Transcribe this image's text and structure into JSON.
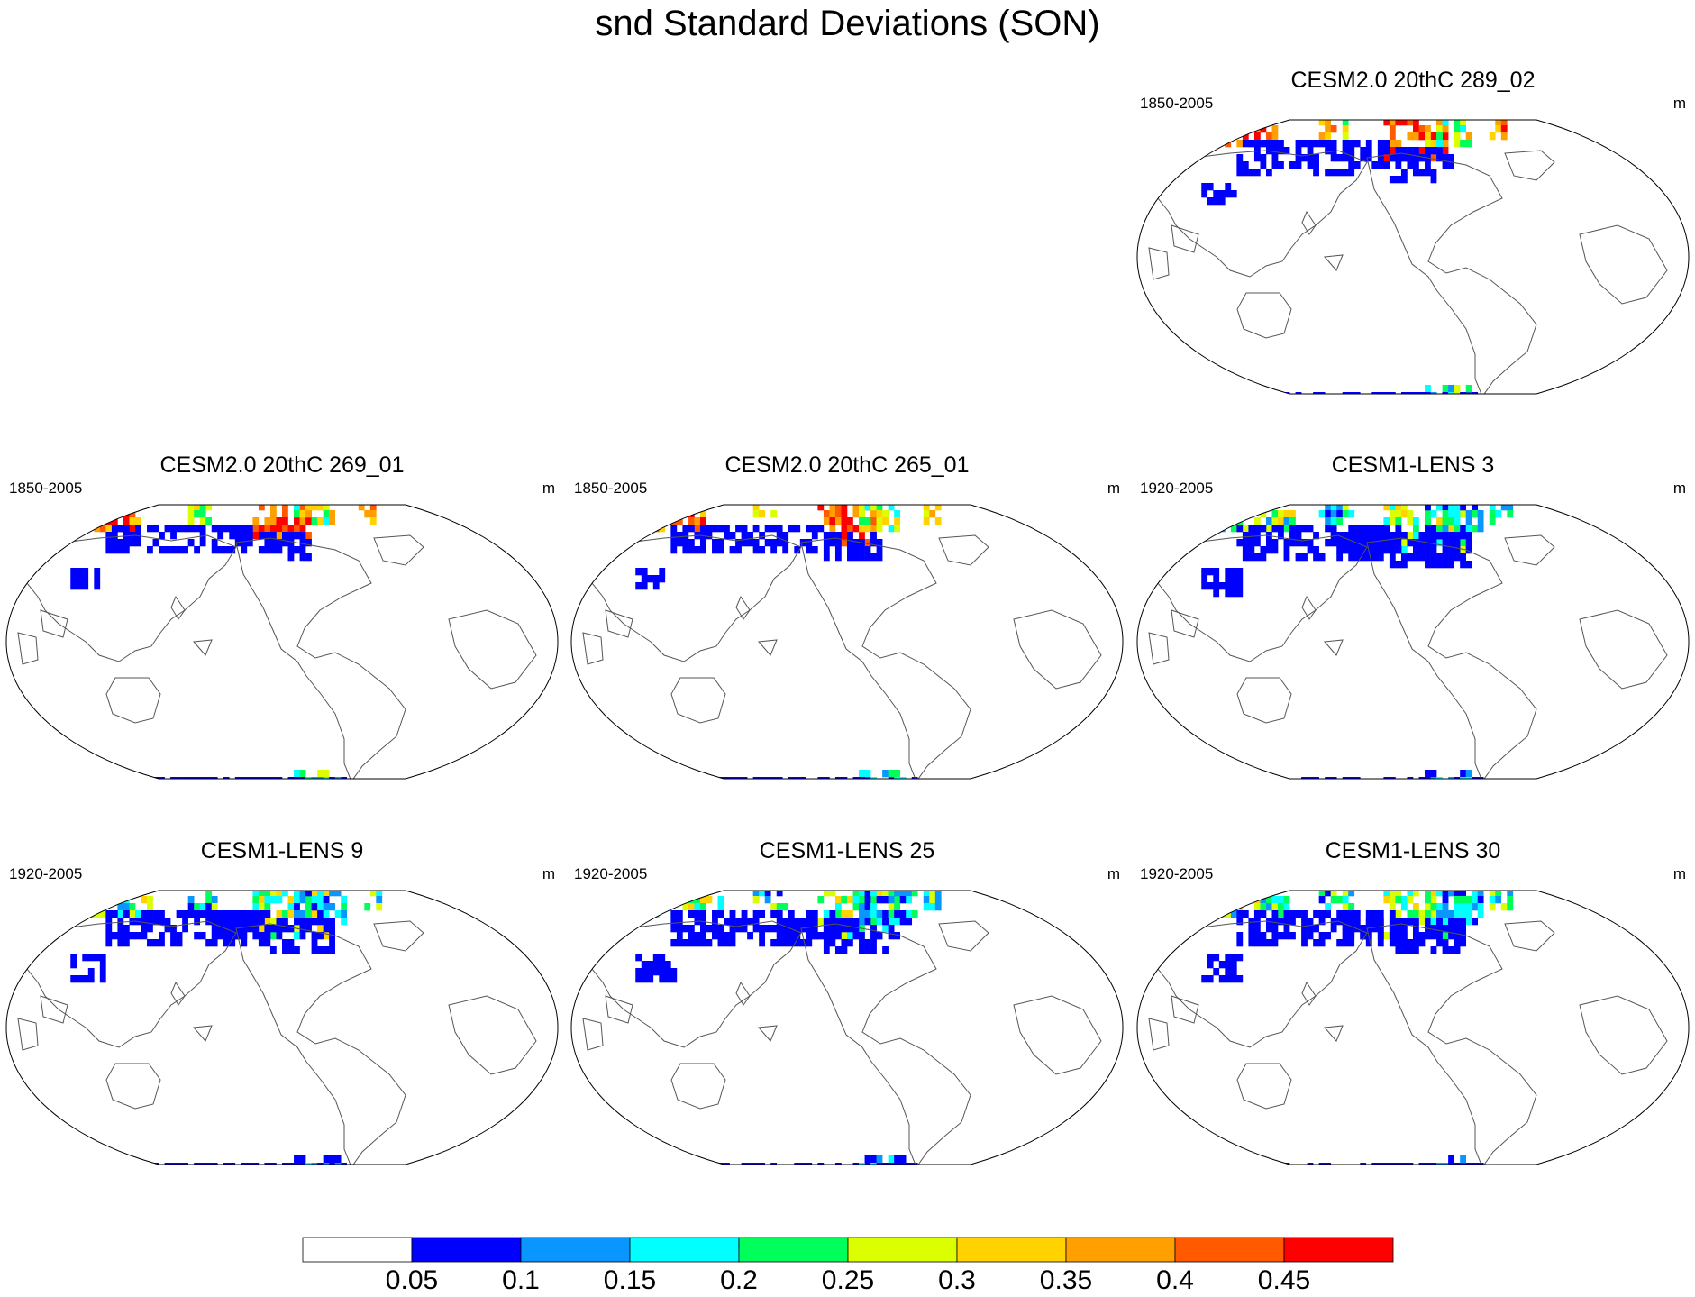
{
  "title": "snd Standard Deviations (SON)",
  "panels": [
    {
      "id": "p1",
      "title": "CESM2.0 20thC 289_02",
      "period": "1850-2005",
      "units": "m",
      "intensity": 1.0,
      "n_extent": 1.0
    },
    {
      "id": "p2",
      "title": "CESM2.0 20thC 269_01",
      "period": "1850-2005",
      "units": "m",
      "intensity": 0.95,
      "n_extent": 0.8
    },
    {
      "id": "p3",
      "title": "CESM2.0 20thC 265_01",
      "period": "1850-2005",
      "units": "m",
      "intensity": 0.95,
      "n_extent": 0.85
    },
    {
      "id": "p4",
      "title": "CESM1-LENS 3",
      "period": "1920-2005",
      "units": "m",
      "intensity": 0.5,
      "n_extent": 1.3
    },
    {
      "id": "p5",
      "title": "CESM1-LENS 9",
      "period": "1920-2005",
      "units": "m",
      "intensity": 0.5,
      "n_extent": 1.2
    },
    {
      "id": "p6",
      "title": "CESM1-LENS 25",
      "period": "1920-2005",
      "units": "m",
      "intensity": 0.5,
      "n_extent": 1.25
    },
    {
      "id": "p7",
      "title": "CESM1-LENS 30",
      "period": "1920-2005",
      "units": "m",
      "intensity": 0.5,
      "n_extent": 1.25
    }
  ],
  "colorbar": {
    "labels": [
      "0.05",
      "0.1",
      "0.15",
      "0.2",
      "0.25",
      "0.3",
      "0.35",
      "0.4",
      "0.45"
    ],
    "colors": [
      "#ffffff",
      "#0000ff",
      "#0a96ff",
      "#00ffff",
      "#00ff5a",
      "#dcff00",
      "#ffd200",
      "#ffa000",
      "#ff5a00",
      "#ff0000"
    ]
  }
}
